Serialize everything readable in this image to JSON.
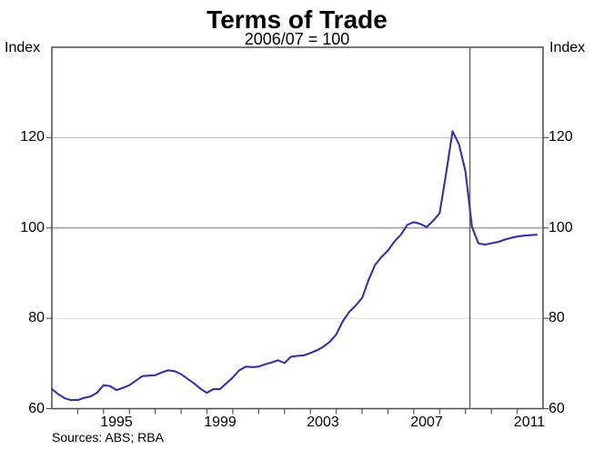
{
  "header": {
    "title": "Terms of Trade",
    "subtitle": "2006/07 = 100"
  },
  "axes": {
    "left_unit_label": "Index",
    "right_unit_label": "Index",
    "y_tick_labels": [
      "120",
      "100",
      "80",
      "60"
    ],
    "x_tick_labels": [
      "1995",
      "1999",
      "2003",
      "2007",
      "2011"
    ]
  },
  "footer": {
    "source": "Sources: ABS; RBA"
  },
  "chart_data": {
    "type": "line",
    "title": "Terms of Trade",
    "subtitle": "2006/07 = 100",
    "ylabel": "Index",
    "xlabel": "",
    "ylim": [
      60,
      140
    ],
    "xlim": [
      1993,
      2012
    ],
    "grid": "horizontal-only",
    "legend": "none",
    "y_axis_ticks": [
      60,
      80,
      100,
      120
    ],
    "y_gridlines": [
      {
        "value": 120,
        "color": "#b5b5b5"
      },
      {
        "value": 100,
        "color": "#8e8e8e"
      },
      {
        "value": 80,
        "color": "#d8d8d8"
      }
    ],
    "x_axis_tick_years": [
      1994,
      1995,
      1996,
      1997,
      1998,
      1999,
      2000,
      2001,
      2002,
      2003,
      2004,
      2005,
      2006,
      2007,
      2008,
      2009,
      2010,
      2011
    ],
    "x_label_positions": [
      {
        "label": "1995",
        "x": 1995.5
      },
      {
        "label": "1999",
        "x": 1999.5
      },
      {
        "label": "2003",
        "x": 2003.5
      },
      {
        "label": "2007",
        "x": 2007.5
      },
      {
        "label": "2011",
        "x": 2011.5
      }
    ],
    "vertical_reference_line_x": 2009.17,
    "series": [
      {
        "name": "Terms of trade (index, 2006/07 = 100)",
        "frequency": "quarterly",
        "x_start": 1993.0,
        "x_step": 0.25,
        "values": [
          64.3,
          63.2,
          62.3,
          61.9,
          61.9,
          62.4,
          62.7,
          63.5,
          65.2,
          65.0,
          64.1,
          64.6,
          65.2,
          66.2,
          67.2,
          67.3,
          67.4,
          68.0,
          68.5,
          68.3,
          67.6,
          66.6,
          65.6,
          64.4,
          63.5,
          64.3,
          64.3,
          65.6,
          66.9,
          68.5,
          69.3,
          69.2,
          69.3,
          69.8,
          70.2,
          70.7,
          70.1,
          71.5,
          71.7,
          71.8,
          72.3,
          72.9,
          73.7,
          74.8,
          76.4,
          79.3,
          81.4,
          82.8,
          84.5,
          88.5,
          91.8,
          93.6,
          95.0,
          97.0,
          98.5,
          100.7,
          101.3,
          100.9,
          100.2,
          101.6,
          103.3,
          112.0,
          121.4,
          118.5,
          112.5,
          100.3,
          96.6,
          96.3,
          96.6,
          96.9,
          97.4,
          97.8,
          98.1,
          98.3,
          98.4,
          98.5
        ]
      }
    ],
    "colors": {
      "line": "#3434A0",
      "frame": "#4c4c4c",
      "vline": "#606060"
    }
  }
}
